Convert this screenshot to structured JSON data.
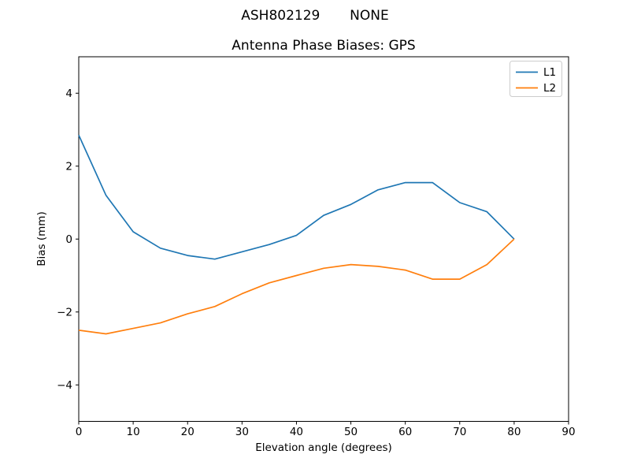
{
  "figure": {
    "suptitle": "ASH802129       NONE",
    "background_color": "#ffffff",
    "axis_color": "#000000"
  },
  "chart_data": {
    "type": "line",
    "suptitle": "ASH802129       NONE",
    "title": "Antenna Phase Biases: GPS",
    "xlabel": "Elevation angle (degrees)",
    "ylabel": "Bias (mm)",
    "xlim": [
      0,
      90
    ],
    "ylim": [
      -5,
      5
    ],
    "x_ticks": [
      0,
      10,
      20,
      30,
      40,
      50,
      60,
      70,
      80,
      90
    ],
    "y_ticks": [
      -4,
      -2,
      0,
      2,
      4
    ],
    "grid": false,
    "legend_position": "upper right",
    "x": [
      0,
      5,
      10,
      15,
      20,
      25,
      30,
      35,
      40,
      45,
      50,
      55,
      60,
      65,
      70,
      75,
      80
    ],
    "series": [
      {
        "name": "L1",
        "color": "#1f77b4",
        "values": [
          2.85,
          1.2,
          0.2,
          -0.25,
          -0.45,
          -0.55,
          -0.35,
          -0.15,
          0.1,
          0.65,
          0.95,
          1.35,
          1.55,
          1.55,
          1.0,
          0.75,
          0.0
        ]
      },
      {
        "name": "L2",
        "color": "#ff7f0e",
        "values": [
          -2.5,
          -2.6,
          -2.45,
          -2.3,
          -2.05,
          -1.85,
          -1.5,
          -1.2,
          -1.0,
          -0.8,
          -0.7,
          -0.75,
          -0.85,
          -1.1,
          -1.1,
          -0.7,
          0.0
        ]
      }
    ]
  }
}
